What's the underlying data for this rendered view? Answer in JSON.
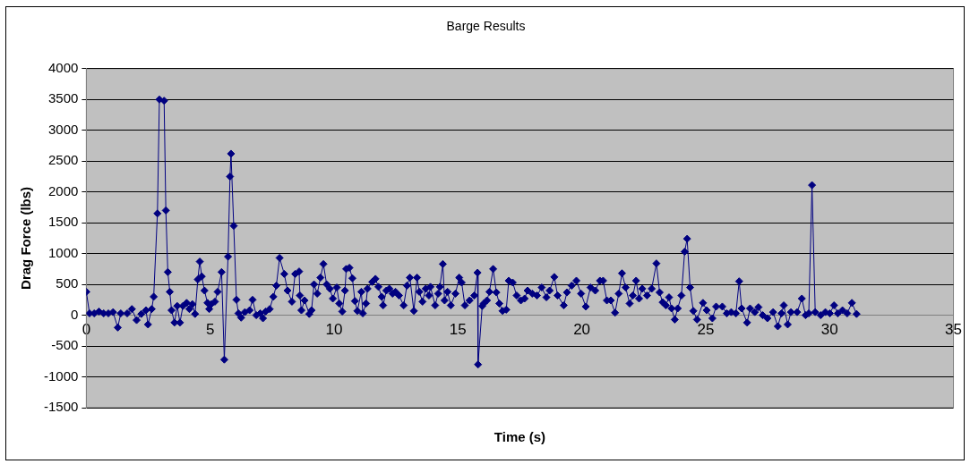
{
  "chart_data": {
    "type": "line",
    "title": "Barge Results",
    "xlabel": "Time (s)",
    "ylabel": "Drag Force (lbs)",
    "xlim": [
      0,
      35
    ],
    "xticks": [
      0,
      5,
      10,
      15,
      20,
      25,
      30,
      35
    ],
    "ylim": [
      -1500,
      4000
    ],
    "yticks": [
      -1500,
      -1000,
      -500,
      0,
      500,
      1000,
      1500,
      2000,
      2500,
      3000,
      3500,
      4000
    ],
    "grid": "y",
    "legend": false,
    "marker": "diamond",
    "line_style": "solid",
    "series": [
      {
        "color": "#000080",
        "x": [
          0,
          0.13,
          0.32,
          0.51,
          0.7,
          0.89,
          1.08,
          1.27,
          1.39,
          1.65,
          1.84,
          2.03,
          2.22,
          2.41,
          2.49,
          2.64,
          2.72,
          2.87,
          2.95,
          3.14,
          3.21,
          3.29,
          3.37,
          3.44,
          3.56,
          3.67,
          3.78,
          3.9,
          4.05,
          4.16,
          4.28,
          4.39,
          4.5,
          4.58,
          4.66,
          4.77,
          4.89,
          4.96,
          5.04,
          5.19,
          5.3,
          5.46,
          5.57,
          5.72,
          5.8,
          5.84,
          5.95,
          6.06,
          6.14,
          6.25,
          6.4,
          6.59,
          6.71,
          6.86,
          7.02,
          7.13,
          7.24,
          7.4,
          7.55,
          7.67,
          7.8,
          7.99,
          8.12,
          8.3,
          8.43,
          8.59,
          8.62,
          8.68,
          8.81,
          9.0,
          9.09,
          9.19,
          9.32,
          9.45,
          9.57,
          9.7,
          9.83,
          9.95,
          10.11,
          10.21,
          10.33,
          10.44,
          10.49,
          10.62,
          10.74,
          10.84,
          10.94,
          11.1,
          11.16,
          11.29,
          11.35,
          11.54,
          11.67,
          11.79,
          11.92,
          11.98,
          12.11,
          12.23,
          12.36,
          12.48,
          12.62,
          12.81,
          12.94,
          13.06,
          13.22,
          13.35,
          13.44,
          13.57,
          13.7,
          13.83,
          13.89,
          14.08,
          14.2,
          14.27,
          14.39,
          14.46,
          14.58,
          14.71,
          14.9,
          15.05,
          15.15,
          15.28,
          15.47,
          15.66,
          15.79,
          15.81,
          15.98,
          16.04,
          16.17,
          16.27,
          16.42,
          16.55,
          16.67,
          16.8,
          16.95,
          17.05,
          17.21,
          17.37,
          17.54,
          17.69,
          17.81,
          18.0,
          18.19,
          18.38,
          18.57,
          18.7,
          18.89,
          19.02,
          19.27,
          19.4,
          19.59,
          19.78,
          19.97,
          20.16,
          20.35,
          20.54,
          20.73,
          20.86,
          21.01,
          21.17,
          21.34,
          21.49,
          21.62,
          21.77,
          21.93,
          22.06,
          22.19,
          22.31,
          22.44,
          22.63,
          22.82,
          23.01,
          23.14,
          23.26,
          23.39,
          23.52,
          23.62,
          23.75,
          23.87,
          24.02,
          24.15,
          24.25,
          24.37,
          24.5,
          24.65,
          24.89,
          25.04,
          25.27,
          25.42,
          25.67,
          25.85,
          26.03,
          26.22,
          26.35,
          26.45,
          26.67,
          26.79,
          26.98,
          27.13,
          27.3,
          27.49,
          27.72,
          27.91,
          28.06,
          28.15,
          28.31,
          28.44,
          28.69,
          28.88,
          29.03,
          29.16,
          29.29,
          29.42,
          29.64,
          29.83,
          30.01,
          30.18,
          30.33,
          30.52,
          30.71,
          30.9,
          31.09
        ],
        "values": [
          380,
          30,
          30,
          60,
          30,
          30,
          50,
          -200,
          30,
          30,
          100,
          -80,
          20,
          80,
          -150,
          100,
          300,
          1650,
          3500,
          3480,
          1700,
          700,
          380,
          80,
          -120,
          150,
          -120,
          150,
          200,
          100,
          180,
          20,
          580,
          870,
          630,
          400,
          200,
          100,
          180,
          220,
          380,
          700,
          -720,
          950,
          2250,
          2620,
          1450,
          250,
          30,
          -40,
          50,
          80,
          250,
          0,
          30,
          -50,
          60,
          100,
          300,
          480,
          930,
          670,
          400,
          220,
          670,
          710,
          320,
          80,
          240,
          20,
          80,
          500,
          350,
          610,
          830,
          500,
          430,
          270,
          450,
          190,
          60,
          400,
          750,
          770,
          600,
          230,
          70,
          380,
          30,
          190,
          430,
          540,
          590,
          460,
          300,
          160,
          400,
          430,
          350,
          380,
          320,
          160,
          480,
          610,
          70,
          610,
          380,
          220,
          430,
          320,
          460,
          160,
          350,
          460,
          830,
          240,
          380,
          160,
          350,
          610,
          530,
          160,
          240,
          320,
          690,
          -800,
          150,
          190,
          240,
          380,
          750,
          370,
          190,
          70,
          90,
          560,
          530,
          320,
          240,
          270,
          400,
          350,
          320,
          450,
          290,
          400,
          620,
          320,
          160,
          370,
          480,
          560,
          350,
          140,
          450,
          400,
          560,
          560,
          240,
          240,
          40,
          350,
          680,
          450,
          190,
          320,
          560,
          270,
          430,
          320,
          430,
          840,
          370,
          210,
          160,
          290,
          110,
          -70,
          110,
          320,
          1030,
          1240,
          450,
          70,
          -70,
          200,
          80,
          -50,
          140,
          140,
          30,
          50,
          30,
          550,
          110,
          -120,
          110,
          50,
          130,
          0,
          -50,
          50,
          -180,
          30,
          160,
          -150,
          50,
          50,
          270,
          0,
          30,
          2110,
          50,
          0,
          50,
          30,
          160,
          30,
          80,
          30,
          200,
          20
        ]
      }
    ]
  }
}
